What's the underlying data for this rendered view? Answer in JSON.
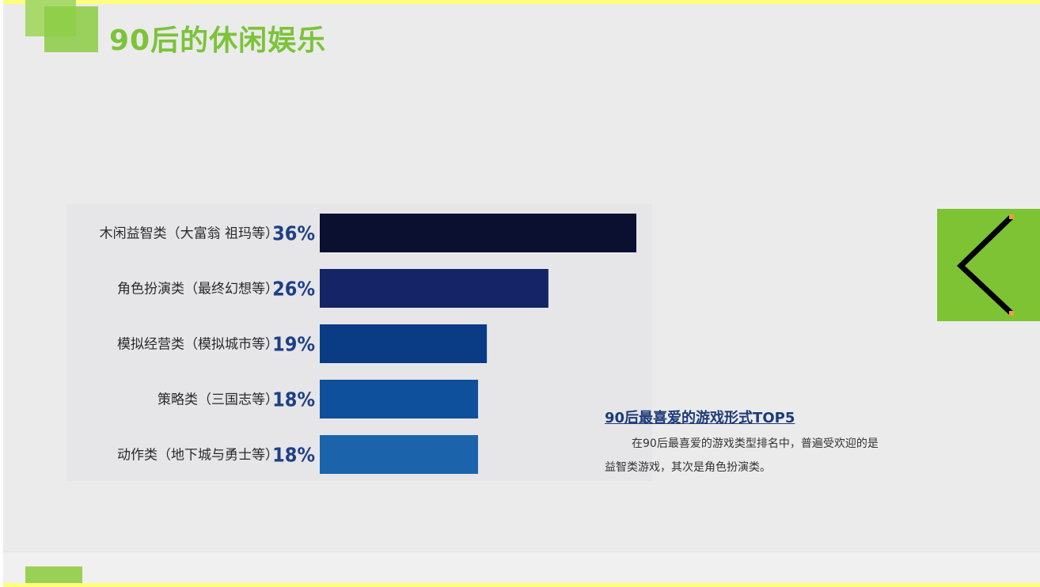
{
  "slide": {
    "title": "90后的休闲娱乐"
  },
  "note": {
    "title": "90后最喜爱的游戏形式TOP5",
    "body": "在90后最喜爱的游戏类型排名中，普遍受欢迎的是益智类游戏，其次是角色扮演类。"
  },
  "nav": {
    "icon": "chevron-left-icon"
  },
  "colors": {
    "accent_green": "#7cc339",
    "bar_colors": [
      "#0c1030",
      "#152467",
      "#0a3b85",
      "#0e509b",
      "#1b64ac"
    ],
    "pct_color": "#1e3f86"
  },
  "chart_data": {
    "type": "bar",
    "orientation": "horizontal",
    "categories": [
      "木闲益智类（大富翁 祖玛等）",
      "角色扮演类（最终幻想等）",
      "模拟经营类（模拟城市等）",
      "策略类（三国志等）",
      "动作类（地下城与勇士等）"
    ],
    "values": [
      36,
      26,
      19,
      18,
      18
    ],
    "value_labels": [
      "36%",
      "26%",
      "19%",
      "18%",
      "18%"
    ],
    "xlim": [
      0,
      36
    ],
    "grid": false,
    "legend": "none"
  }
}
